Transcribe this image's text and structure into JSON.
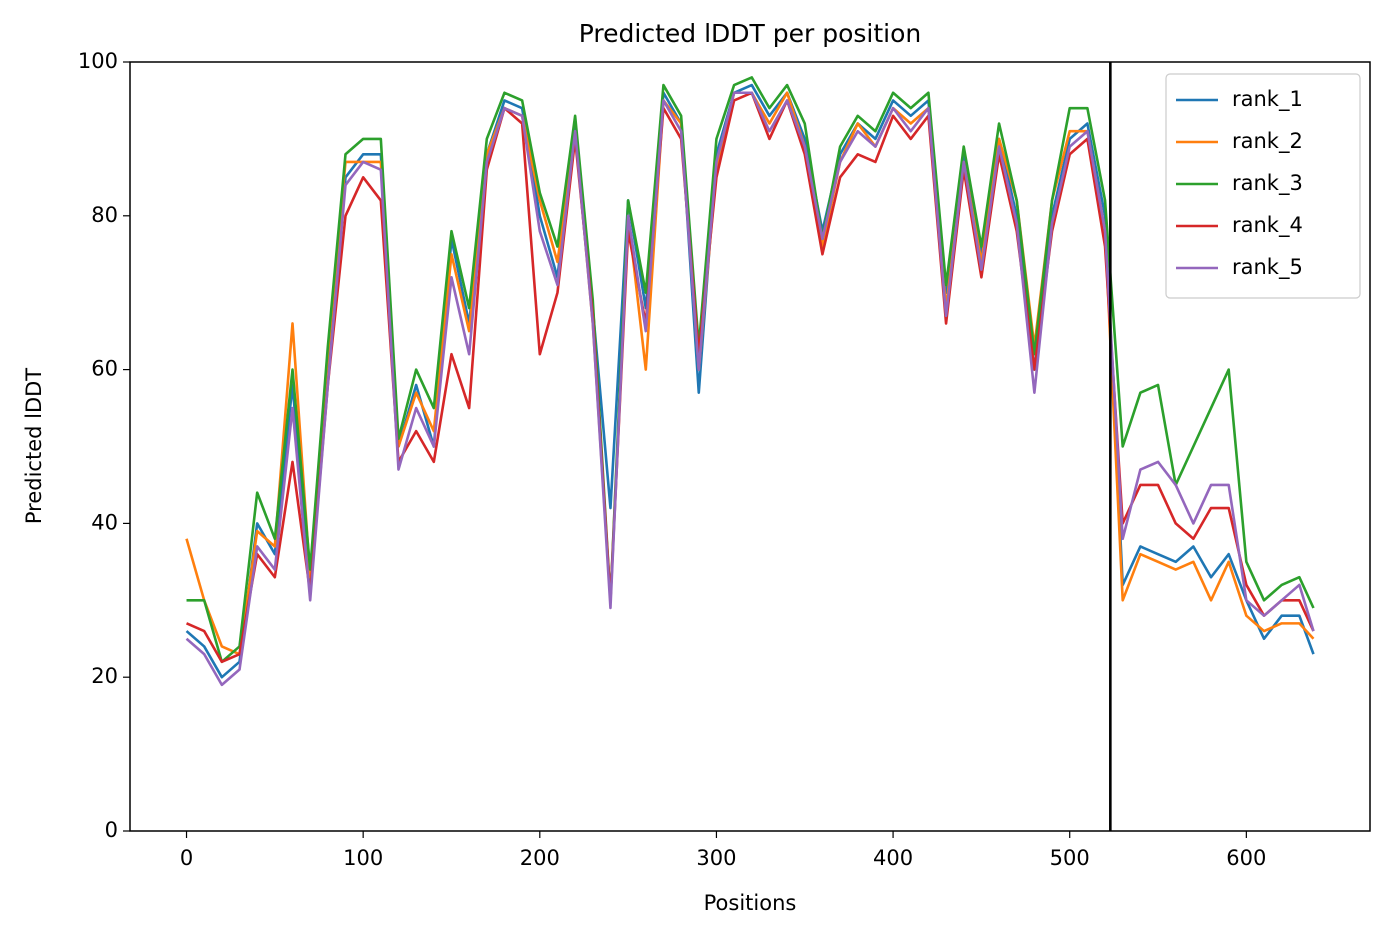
{
  "chart_data": {
    "type": "line",
    "title": "Predicted lDDT per position",
    "xlabel": "Positions",
    "ylabel": "Predicted lDDT",
    "x": [
      0,
      10,
      20,
      30,
      40,
      50,
      60,
      70,
      80,
      90,
      100,
      110,
      120,
      130,
      140,
      150,
      160,
      170,
      180,
      190,
      200,
      210,
      220,
      230,
      240,
      250,
      260,
      270,
      280,
      290,
      300,
      310,
      320,
      330,
      340,
      350,
      360,
      370,
      380,
      390,
      400,
      410,
      420,
      430,
      440,
      450,
      460,
      470,
      480,
      490,
      500,
      510,
      520,
      530,
      540,
      550,
      560,
      570,
      580,
      590,
      600,
      610,
      620,
      630,
      638
    ],
    "series": [
      {
        "name": "rank_1",
        "color": "#1f77b4",
        "values": [
          26,
          24,
          20,
          22,
          40,
          36,
          58,
          32,
          60,
          85,
          88,
          88,
          50,
          58,
          50,
          77,
          66,
          88,
          95,
          94,
          80,
          72,
          92,
          68,
          42,
          82,
          68,
          96,
          92,
          57,
          88,
          96,
          97,
          93,
          96,
          90,
          78,
          88,
          92,
          90,
          95,
          93,
          95,
          70,
          88,
          75,
          90,
          80,
          60,
          80,
          90,
          92,
          80,
          32,
          37,
          36,
          35,
          37,
          33,
          36,
          30,
          25,
          28,
          28,
          23
        ]
      },
      {
        "name": "rank_2",
        "color": "#ff7f0e",
        "values": [
          38,
          30,
          24,
          23,
          39,
          37,
          66,
          33,
          62,
          87,
          87,
          87,
          50,
          57,
          52,
          75,
          65,
          88,
          94,
          93,
          82,
          74,
          91,
          66,
          30,
          80,
          60,
          95,
          92,
          60,
          86,
          96,
          96,
          92,
          96,
          89,
          76,
          87,
          92,
          89,
          94,
          92,
          94,
          68,
          87,
          74,
          90,
          82,
          63,
          82,
          91,
          91,
          78,
          30,
          36,
          35,
          34,
          35,
          30,
          35,
          28,
          26,
          27,
          27,
          25
        ]
      },
      {
        "name": "rank_3",
        "color": "#2ca02c",
        "values": [
          30,
          30,
          22,
          24,
          44,
          38,
          60,
          34,
          63,
          88,
          90,
          90,
          51,
          60,
          55,
          78,
          68,
          90,
          96,
          95,
          83,
          76,
          93,
          69,
          30,
          82,
          70,
          97,
          93,
          63,
          90,
          97,
          98,
          94,
          97,
          92,
          77,
          89,
          93,
          91,
          96,
          94,
          96,
          71,
          89,
          76,
          92,
          82,
          62,
          82,
          94,
          94,
          82,
          50,
          57,
          58,
          45,
          50,
          55,
          60,
          35,
          30,
          32,
          33,
          29
        ]
      },
      {
        "name": "rank_4",
        "color": "#d62728",
        "values": [
          27,
          26,
          22,
          23,
          36,
          33,
          48,
          31,
          58,
          80,
          85,
          82,
          48,
          52,
          48,
          62,
          55,
          86,
          94,
          92,
          62,
          70,
          90,
          67,
          30,
          78,
          66,
          94,
          90,
          62,
          85,
          95,
          96,
          90,
          95,
          88,
          75,
          85,
          88,
          87,
          93,
          90,
          93,
          66,
          86,
          72,
          88,
          78,
          60,
          78,
          88,
          90,
          76,
          40,
          45,
          45,
          40,
          38,
          42,
          42,
          32,
          28,
          30,
          30,
          26
        ]
      },
      {
        "name": "rank_5",
        "color": "#9467bd",
        "values": [
          25,
          23,
          19,
          21,
          37,
          34,
          55,
          30,
          58,
          84,
          87,
          86,
          47,
          55,
          50,
          72,
          62,
          87,
          94,
          93,
          78,
          71,
          91,
          66,
          29,
          80,
          65,
          95,
          91,
          60,
          87,
          96,
          96,
          91,
          95,
          89,
          77,
          87,
          91,
          89,
          94,
          91,
          94,
          67,
          87,
          73,
          89,
          79,
          57,
          79,
          89,
          91,
          78,
          38,
          47,
          48,
          45,
          40,
          45,
          45,
          30,
          28,
          30,
          32,
          26
        ]
      }
    ],
    "vline": 523,
    "xlim": [
      -32,
      670
    ],
    "ylim": [
      0,
      100
    ],
    "xticks": [
      0,
      100,
      200,
      300,
      400,
      500,
      600
    ],
    "yticks": [
      0,
      20,
      40,
      60,
      80,
      100
    ],
    "legend": "upper right"
  }
}
